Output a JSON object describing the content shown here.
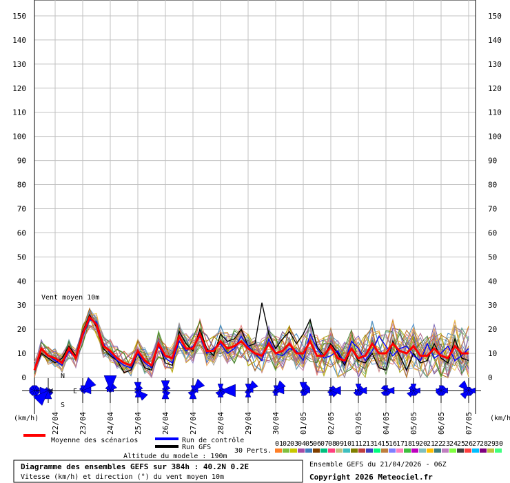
{
  "chart_data": {
    "type": "line",
    "title": "Vent moyen 10m",
    "ylabel_left": "(km/h)",
    "ylabel_right": "(km/h)",
    "ylim": [
      0,
      150
    ],
    "yticks": [
      0,
      10,
      20,
      30,
      40,
      50,
      60,
      70,
      80,
      90,
      100,
      110,
      120,
      130,
      140,
      150
    ],
    "xlim_hours": [
      0,
      384
    ],
    "dates": [
      "22/04",
      "23/04",
      "24/04",
      "25/04",
      "26/04",
      "27/04",
      "28/04",
      "29/04",
      "30/04",
      "01/05",
      "02/05",
      "03/05",
      "04/05",
      "05/05",
      "06/05",
      "07/05"
    ],
    "date_hours": [
      18,
      42,
      66,
      90,
      114,
      138,
      162,
      186,
      210,
      234,
      258,
      282,
      306,
      330,
      354,
      378
    ],
    "step_hours": 6,
    "mean": [
      3,
      12,
      9,
      8,
      6,
      12,
      8,
      18,
      25,
      22,
      13,
      11,
      8,
      6,
      5,
      11,
      7,
      5,
      14,
      9,
      8,
      17,
      12,
      12,
      18,
      11,
      11,
      15,
      12,
      13,
      15,
      12,
      10,
      9,
      14,
      10,
      11,
      14,
      10,
      10,
      15,
      9,
      9,
      13,
      8,
      7,
      12,
      8,
      9,
      14,
      10,
      10,
      14,
      11,
      10,
      13,
      9,
      9,
      12,
      9,
      8,
      13,
      10,
      10
    ],
    "control": [
      3,
      12,
      9,
      7,
      5,
      11,
      8,
      17,
      24,
      23,
      14,
      10,
      7,
      5,
      4,
      10,
      6,
      4,
      13,
      8,
      6,
      15,
      11,
      13,
      17,
      10,
      12,
      14,
      10,
      12,
      17,
      13,
      10,
      7,
      16,
      10,
      9,
      12,
      11,
      7,
      18,
      12,
      8,
      9,
      11,
      6,
      15,
      12,
      7,
      11,
      17,
      13,
      9,
      12,
      13,
      9,
      7,
      14,
      8,
      10,
      13,
      7,
      9,
      12
    ],
    "gfs": [
      3,
      10,
      8,
      6,
      8,
      13,
      9,
      19,
      26,
      21,
      12,
      9,
      7,
      2,
      3,
      10,
      4,
      3,
      14,
      6,
      5,
      19,
      14,
      11,
      20,
      12,
      9,
      18,
      15,
      16,
      20,
      13,
      14,
      31,
      18,
      12,
      16,
      19,
      14,
      18,
      24,
      13,
      9,
      14,
      10,
      5,
      12,
      7,
      6,
      10,
      4,
      3,
      15,
      9,
      3,
      10,
      6,
      7,
      14,
      8,
      6,
      16,
      8,
      7
    ],
    "series_colors": {
      "mean": "#ff0000",
      "control": "#0000ff",
      "gfs": "#000000"
    },
    "member_palette": [
      "#e69138",
      "#6aa84f",
      "#cc9900",
      "#a64d79",
      "#3d85c6",
      "#9e9e00",
      "#e06666",
      "#8e7cc3",
      "#76a5af",
      "#f1c232",
      "#b45f06",
      "#674ea7",
      "#38761d",
      "#c27ba0",
      "#999999"
    ],
    "legend": {
      "mean_label": "Moyenne des scénarios",
      "control_label": "Run de contrôle",
      "gfs_label": "Run GFS",
      "perts_label": "30 Perts.",
      "altitude_label": "Altitude du modele : 190m",
      "member_codes": [
        "01",
        "02",
        "03",
        "04",
        "05",
        "06",
        "07",
        "08",
        "09",
        "10",
        "11",
        "12",
        "13",
        "14",
        "15",
        "16",
        "17",
        "18",
        "19",
        "20",
        "21",
        "22",
        "23",
        "24",
        "25",
        "26",
        "27",
        "28",
        "29",
        "30"
      ],
      "member_colors": [
        "#ff7f27",
        "#7fbf3f",
        "#c8c800",
        "#a64ca6",
        "#3f7fbf",
        "#7f3f00",
        "#00bf7f",
        "#ff3f7f",
        "#bfbf7f",
        "#3fbfbf",
        "#7f7f00",
        "#bf3f3f",
        "#3f3fbf",
        "#00ff7f",
        "#bf7f3f",
        "#7f7fff",
        "#ff7fbf",
        "#3fbf3f",
        "#bf00bf",
        "#7fbfbf",
        "#ffbf00",
        "#3f7f7f",
        "#bf7fbf",
        "#7fff3f",
        "#3f3f3f",
        "#ff3f3f",
        "#00bfff",
        "#7f007f",
        "#bfbf3f",
        "#3fff7f"
      ]
    },
    "compass": {
      "n": "N",
      "s": "S",
      "e": "E",
      "w": "W"
    },
    "wind_dirs": [
      {
        "hour": 0,
        "rose": [
          0.3,
          0.3,
          0.3,
          0.3,
          0.3,
          0.3,
          0.3,
          0.3
        ]
      },
      {
        "hour": 12,
        "rose": [
          0.1,
          0.1,
          0.2,
          0.3,
          0.5,
          0.9,
          0.5,
          0.2
        ]
      },
      {
        "hour": 42,
        "rose": [
          0.3,
          0.8,
          0.5,
          0.2,
          0.1,
          0.1,
          0.1,
          0.2
        ]
      },
      {
        "hour": 66,
        "rose": [
          0.9,
          0.4,
          0.2,
          0.1,
          0.1,
          0.1,
          0.2,
          0.3
        ]
      },
      {
        "hour": 90,
        "rose": [
          0.5,
          0.3,
          0.2,
          0.6,
          0.4,
          0.2,
          0.1,
          0.2
        ]
      },
      {
        "hour": 114,
        "rose": [
          0.6,
          0.3,
          0.1,
          0.3,
          0.5,
          0.2,
          0.1,
          0.2
        ]
      },
      {
        "hour": 138,
        "rose": [
          0.3,
          0.7,
          0.3,
          0.2,
          0.5,
          0.3,
          0.1,
          0.1
        ]
      },
      {
        "hour": 162,
        "rose": [
          0.4,
          0.2,
          0.9,
          0.3,
          0.4,
          0.3,
          0.1,
          0.1
        ]
      },
      {
        "hour": 186,
        "rose": [
          0.4,
          0.6,
          0.3,
          0.2,
          0.4,
          0.2,
          0.1,
          0.1
        ]
      },
      {
        "hour": 210,
        "rose": [
          0.3,
          0.6,
          0.5,
          0.2,
          0.3,
          0.2,
          0.1,
          0.1
        ]
      },
      {
        "hour": 234,
        "rose": [
          0.5,
          0.4,
          0.4,
          0.3,
          0.3,
          0.2,
          0.1,
          0.1
        ]
      },
      {
        "hour": 258,
        "rose": [
          0.2,
          0.3,
          0.6,
          0.4,
          0.3,
          0.2,
          0.1,
          0.1
        ]
      },
      {
        "hour": 282,
        "rose": [
          0.4,
          0.3,
          0.5,
          0.3,
          0.3,
          0.3,
          0.2,
          0.1
        ]
      },
      {
        "hour": 306,
        "rose": [
          0.3,
          0.2,
          0.5,
          0.3,
          0.3,
          0.3,
          0.1,
          0.3
        ]
      },
      {
        "hour": 330,
        "rose": [
          0.4,
          0.2,
          0.4,
          0.3,
          0.3,
          0.4,
          0.2,
          0.3
        ]
      },
      {
        "hour": 354,
        "rose": [
          0.3,
          0.3,
          0.4,
          0.3,
          0.3,
          0.3,
          0.3,
          0.2
        ]
      },
      {
        "hour": 378,
        "rose": [
          0.2,
          0.2,
          0.4,
          0.3,
          0.3,
          0.5,
          0.3,
          0.6
        ]
      }
    ]
  },
  "footer": {
    "title": "Diagramme des ensembles GEFS sur 384h : 40.2N 0.2E",
    "subtitle": "Vitesse (km/h) et direction (°) du vent moyen 10m",
    "run": "Ensemble GEFS du 21/04/2026 - 06Z",
    "copyright": "Copyright 2026 Meteociel.fr"
  }
}
